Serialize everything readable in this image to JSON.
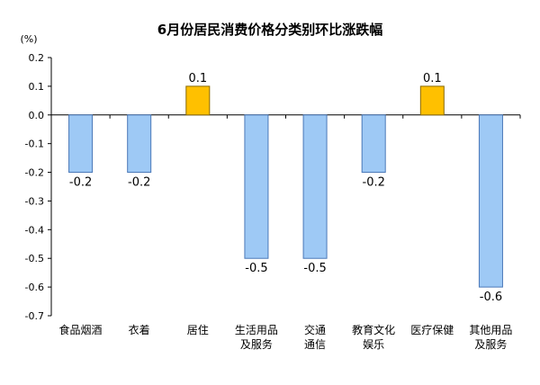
{
  "chart_data": {
    "type": "bar",
    "title": "6月份居民消费价格分类别环比涨跌幅",
    "unit_label": "(%)",
    "categories": [
      [
        "食品烟酒"
      ],
      [
        "衣着"
      ],
      [
        "居住"
      ],
      [
        "生活用品",
        "及服务"
      ],
      [
        "交通",
        "通信"
      ],
      [
        "教育文化",
        "娱乐"
      ],
      [
        "医疗保健"
      ],
      [
        "其他用品",
        "及服务"
      ]
    ],
    "values": [
      -0.2,
      -0.2,
      0.1,
      -0.5,
      -0.5,
      -0.2,
      0.1,
      -0.6
    ],
    "value_labels": [
      "-0.2",
      "-0.2",
      "0.1",
      "-0.5",
      "-0.5",
      "-0.2",
      "0.1",
      "-0.6"
    ],
    "ylim": [
      -0.7,
      0.2
    ],
    "yticks": [
      "0.2",
      "0.1",
      "0.0",
      "-0.1",
      "-0.2",
      "-0.3",
      "-0.4",
      "-0.5",
      "-0.6",
      "-0.7"
    ],
    "ytick_values": [
      0.2,
      0.1,
      0.0,
      -0.1,
      -0.2,
      -0.3,
      -0.4,
      -0.5,
      -0.6,
      -0.7
    ],
    "colors": {
      "negative_fill": "#9ec9f5",
      "negative_stroke": "#4a78b8",
      "positive_fill": "#ffc000",
      "positive_stroke": "#8a6a00",
      "axis": "#000000"
    },
    "grid": false,
    "legend": "none"
  }
}
